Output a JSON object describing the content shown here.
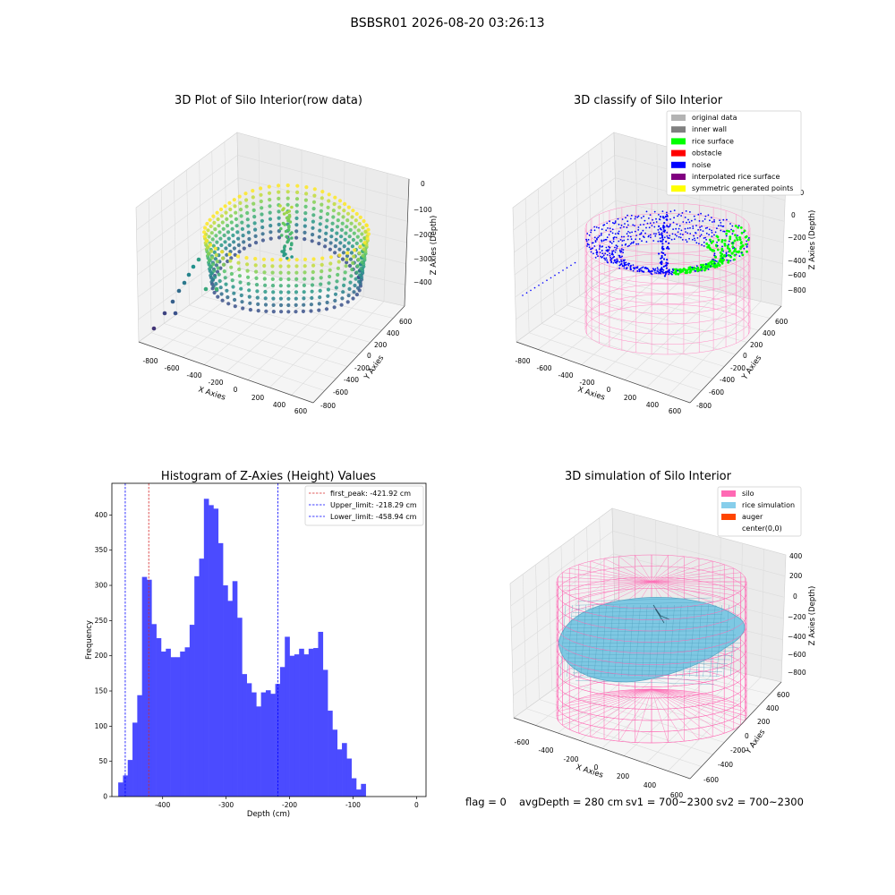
{
  "figure_title": "BSBSR01 2026-08-20 03:26:13",
  "chart_data": [
    {
      "type": "scatter3d",
      "title": "3D Plot of Silo Interior(row data)",
      "xlabel": "X Axies",
      "ylabel": "Y Axies",
      "zlabel": "Z Axies (Depth)",
      "x_ticks": [
        "-800",
        "-600",
        "-400",
        "-200",
        "0",
        "200",
        "400",
        "600"
      ],
      "y_ticks": [
        "-800",
        "-600",
        "-400",
        "-200",
        "0",
        "200",
        "400",
        "600"
      ],
      "z_ticks": [
        "0",
        "−100",
        "−200",
        "−300",
        "−400"
      ],
      "colormap": "viridis"
    },
    {
      "type": "scatter3d",
      "title": "3D classify of Silo Interior",
      "xlabel": "X Axies",
      "ylabel": "Y Axies",
      "zlabel": "Z Axies (Depth)",
      "x_ticks": [
        "-800",
        "-600",
        "-400",
        "-200",
        "0",
        "200",
        "400",
        "600"
      ],
      "y_ticks": [
        "-800",
        "-600",
        "-400",
        "-200",
        "0",
        "200",
        "400",
        "600"
      ],
      "z_ticks": [
        "200",
        "0",
        "−200",
        "−400",
        "−600",
        "−800"
      ],
      "legend": [
        {
          "label": "original data",
          "color": "#b3b3b3"
        },
        {
          "label": "inner wall",
          "color": "#808080"
        },
        {
          "label": "rice surface",
          "color": "#00ff00"
        },
        {
          "label": "obstacle",
          "color": "#ff0000"
        },
        {
          "label": "noise",
          "color": "#0000ff"
        },
        {
          "label": "interpolated rice surface",
          "color": "#800080"
        },
        {
          "label": "symmetric generated points",
          "color": "#ffff00"
        }
      ],
      "legend_position": "top-right"
    },
    {
      "type": "bar",
      "title": "Histogram of Z-Axies (Height) Values",
      "xlabel": "Depth (cm)",
      "ylabel": "Frequency",
      "xlim": [
        -480,
        15
      ],
      "ylim": [
        0,
        445
      ],
      "x_ticks": [
        -400,
        -300,
        -200,
        -100,
        0
      ],
      "y_ticks": [
        0,
        50,
        100,
        150,
        200,
        250,
        300,
        350,
        400
      ],
      "bin_start": -470,
      "bin_width": 7.5,
      "values": [
        20,
        30,
        52,
        105,
        144,
        312,
        308,
        245,
        225,
        206,
        210,
        198,
        198,
        206,
        212,
        244,
        313,
        338,
        423,
        414,
        409,
        360,
        300,
        278,
        306,
        254,
        174,
        161,
        148,
        128,
        148,
        151,
        146,
        160,
        184,
        227,
        200,
        202,
        210,
        202,
        210,
        211,
        234,
        180,
        122,
        95,
        67,
        76,
        54,
        26,
        10,
        18
      ],
      "bar_color": "#4b4bff",
      "vlines": [
        {
          "label": "first_peak: -421.92 cm",
          "value": -421.92,
          "color": "#d62728"
        },
        {
          "label": "Upper_limit: -218.29 cm",
          "value": -218.29,
          "color": "#0000ff"
        },
        {
          "label": "Lower_limit: -458.94 cm",
          "value": -458.94,
          "color": "#0000ff"
        }
      ],
      "legend_position": "top-right"
    },
    {
      "type": "surface3d",
      "title": "3D simulation of Silo Interior",
      "xlabel": "X Axies",
      "ylabel": "Y Axies",
      "zlabel": "Z Axies (Depth)",
      "x_ticks": [
        "-600",
        "-400",
        "-200",
        "0",
        "200",
        "400",
        "600"
      ],
      "y_ticks": [
        "-600",
        "-400",
        "-200",
        "0",
        "200",
        "400",
        "600"
      ],
      "z_ticks": [
        "400",
        "200",
        "0",
        "−200",
        "−400",
        "−600",
        "−800"
      ],
      "legend": [
        {
          "label": "silo",
          "color": "#ff69b4"
        },
        {
          "label": "rice simulation",
          "color": "#87ceeb"
        },
        {
          "label": "auger",
          "color": "#ff4500"
        },
        {
          "label": "center(0,0)",
          "color": "#ffffff"
        }
      ],
      "legend_position": "top-right"
    }
  ],
  "status_line": {
    "flag": "flag = 0",
    "avg_depth": "avgDepth = 280 cm",
    "sv1": "sv1 = 700~2300",
    "sv2": "sv2 = 700~2300"
  }
}
